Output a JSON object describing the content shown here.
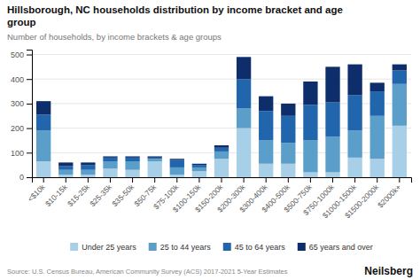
{
  "chart_data": {
    "type": "bar",
    "stacked": true,
    "title": "Hillsborough, NC households distribution by income bracket and age\ngroup",
    "subtitle": "Number of households, by income brackets & age groups",
    "source": "Source: U.S. Census Bureau, American Community Survey (ACS) 2017-2021 5-Year Estimates",
    "annotations": [
      "Neilsberg"
    ],
    "categories": [
      "<$10k",
      "$10-15k",
      "$15-25k",
      "$25-35k",
      "$35-50k",
      "$50-75k",
      "$75-100k",
      "$100-150k",
      "$150-200k",
      "$200-300k",
      "$300-400k",
      "$400-500k",
      "$500-750k",
      "$750-1000k",
      "$1000-1500k",
      "$1500-2000k",
      "$2000k+"
    ],
    "series": [
      {
        "name": "Under 25 years",
        "color": "#a8cfe8",
        "values": [
          65,
          10,
          10,
          35,
          30,
          65,
          10,
          25,
          75,
          200,
          55,
          55,
          20,
          20,
          80,
          75,
          210
        ]
      },
      {
        "name": "25 to 44 years",
        "color": "#5b9ec9",
        "values": [
          125,
          20,
          20,
          30,
          35,
          10,
          30,
          15,
          30,
          80,
          95,
          85,
          130,
          145,
          110,
          175,
          170
        ]
      },
      {
        "name": "45 to 64 years",
        "color": "#2166ac",
        "values": [
          65,
          15,
          20,
          15,
          15,
          5,
          30,
          10,
          15,
          120,
          120,
          110,
          145,
          140,
          145,
          100,
          55
        ]
      },
      {
        "name": "65 years and over",
        "color": "#0d2d6b",
        "values": [
          55,
          15,
          10,
          5,
          5,
          5,
          5,
          5,
          10,
          90,
          60,
          50,
          95,
          145,
          125,
          35,
          25
        ]
      }
    ],
    "ylim": [
      0,
      520
    ],
    "yticks": [
      0,
      100,
      200,
      300,
      400,
      500
    ],
    "grid": true,
    "legend": "bottom"
  }
}
